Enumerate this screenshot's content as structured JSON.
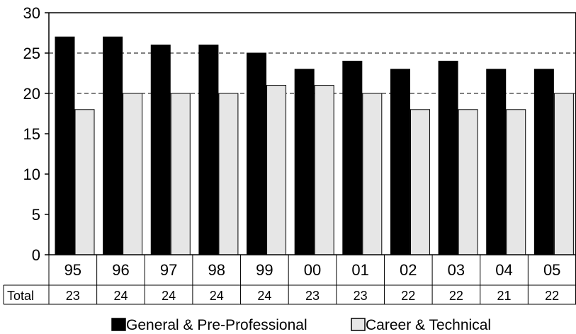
{
  "chart_data": {
    "type": "bar",
    "categories": [
      "95",
      "96",
      "97",
      "98",
      "99",
      "00",
      "01",
      "02",
      "03",
      "04",
      "05"
    ],
    "series": [
      {
        "name": "General & Pre-Professional",
        "values": [
          27,
          27,
          26,
          26,
          25,
          23,
          24,
          23,
          24,
          23,
          23
        ],
        "color": "#000000"
      },
      {
        "name": "Career & Technical",
        "values": [
          18,
          20,
          20,
          20,
          21,
          21,
          20,
          18,
          18,
          18,
          20
        ],
        "color": "#e6e6e6"
      }
    ],
    "y_ticks": [
      "0",
      "5",
      "10",
      "15",
      "20",
      "25",
      "30"
    ],
    "ylim": [
      0,
      30
    ],
    "grid": "dashed horizontal lines at 20 and 25",
    "legend_position": "bottom",
    "table": {
      "row_label": "Total",
      "values": [
        "23",
        "24",
        "24",
        "24",
        "24",
        "23",
        "23",
        "22",
        "22",
        "21",
        "22"
      ]
    }
  }
}
